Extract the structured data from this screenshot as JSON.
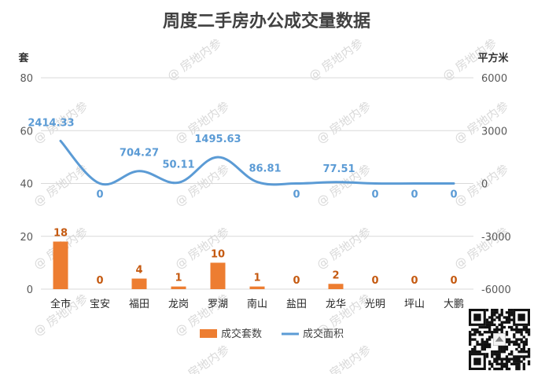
{
  "chart_data": {
    "type": "bar",
    "title": "周度二手房办公成交量数据",
    "ylabel_left": "套",
    "ylabel_right": "平方米",
    "left_ylim": [
      0,
      80
    ],
    "left_ticks": [
      "0",
      "20",
      "40",
      "60",
      "80"
    ],
    "right_ylim": [
      -6000,
      6000
    ],
    "right_ticks": [
      "-6000",
      "-3000",
      "0",
      "3000",
      "6000"
    ],
    "grid": true,
    "legend_position": "bottom",
    "categories": [
      "全市",
      "宝安",
      "福田",
      "龙岗",
      "罗湖",
      "南山",
      "盐田",
      "龙华",
      "光明",
      "坪山",
      "大鹏"
    ],
    "series": [
      {
        "name": "成交套数",
        "type": "bar",
        "axis": "left",
        "color": "#ed7d31",
        "values": [
          18,
          0,
          4,
          1,
          10,
          1,
          0,
          2,
          0,
          0,
          0
        ],
        "labels": [
          "18",
          "0",
          "4",
          "1",
          "10",
          "1",
          "0",
          "2",
          "0",
          "0",
          "0"
        ]
      },
      {
        "name": "成交面积",
        "type": "line",
        "axis": "right",
        "color": "#5b9bd5",
        "values": [
          2414.33,
          0,
          704.27,
          50.11,
          1495.63,
          86.81,
          0,
          77.51,
          0,
          0,
          0
        ],
        "labels": [
          "2414.33",
          "0",
          "704.27",
          "50.11",
          "1495.63",
          "86.81",
          "0",
          "77.51",
          "0",
          "0",
          "0"
        ]
      }
    ]
  },
  "watermark": "@ 房地内参"
}
